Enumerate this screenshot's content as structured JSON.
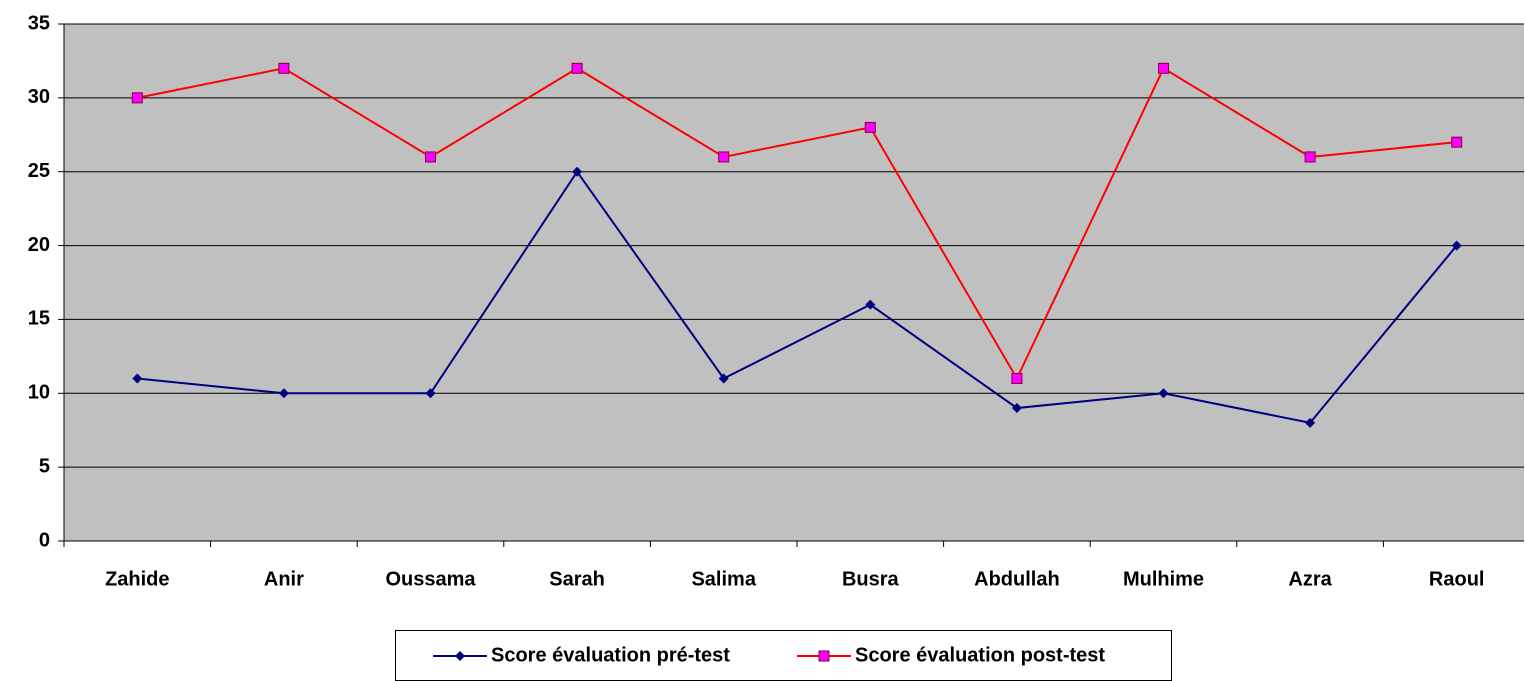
{
  "chart_data": {
    "type": "line",
    "categories": [
      "Zahide",
      "Anir",
      "Oussama",
      "Sarah",
      "Salima",
      "Busra",
      "Abdullah",
      "Mulhime",
      "Azra",
      "Raoul"
    ],
    "series": [
      {
        "name": "Score évaluation pré-test",
        "color": "#000080",
        "marker_color": "#000080",
        "values": [
          11,
          10,
          10,
          25,
          11,
          16,
          9,
          10,
          8,
          20
        ]
      },
      {
        "name": "Score évaluation post-test",
        "color": "#ff0000",
        "marker_color": "#ff00ff",
        "values": [
          30,
          32,
          26,
          32,
          26,
          28,
          11,
          32,
          26,
          27
        ]
      }
    ],
    "ylim": [
      0,
      35
    ],
    "yticks": [
      0,
      5,
      10,
      15,
      20,
      25,
      30,
      35
    ],
    "grid": true,
    "legend": "bottom"
  }
}
